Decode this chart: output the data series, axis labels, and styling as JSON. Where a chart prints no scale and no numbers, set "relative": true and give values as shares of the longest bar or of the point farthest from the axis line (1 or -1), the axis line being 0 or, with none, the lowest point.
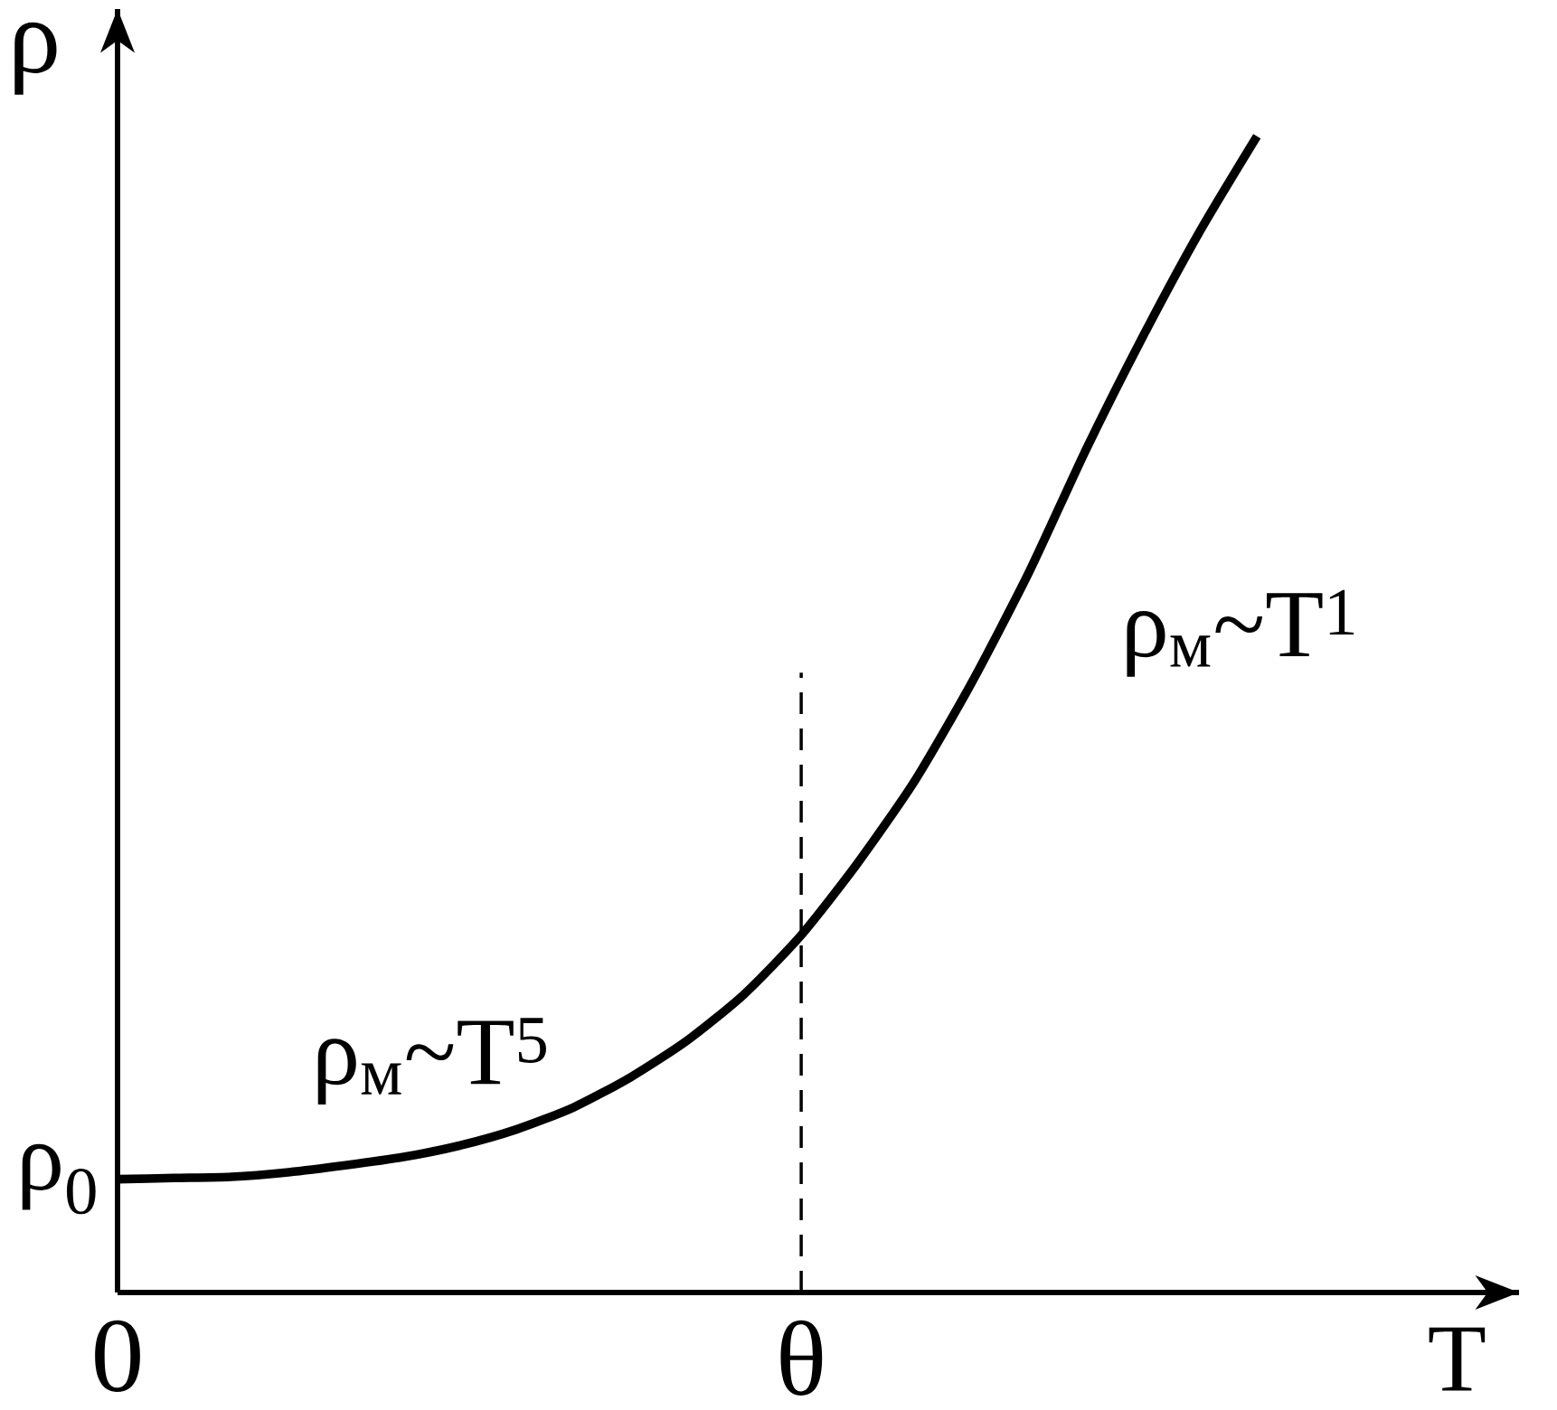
{
  "chart_data": {
    "type": "line",
    "relative": true,
    "xlabel": "T",
    "ylabel": "ρ",
    "categories": [
      "0",
      null,
      null,
      null,
      null,
      null,
      null,
      null,
      null,
      null,
      null,
      null,
      "θ",
      null,
      null,
      null,
      null,
      null,
      null,
      null,
      null
    ],
    "series": [
      {
        "color": "#000000",
        "values": [
          0.098,
          0.099,
          0.1,
          0.104,
          0.11,
          0.117,
          0.127,
          0.141,
          0.16,
          0.186,
          0.218,
          0.258,
          0.309,
          0.372,
          0.443,
          0.528,
          0.623,
          0.729,
          0.827,
          0.918,
          1.0
        ]
      }
    ],
    "ref_lines": [
      {
        "axis": "x",
        "value": "θ",
        "line_style": "dashed"
      }
    ],
    "annotations": [
      "ρ$_{0}$",
      "ρ$_{м}$~T$^{5}$",
      "ρ$_{м}$~T$^{1}$"
    ],
    "line_style": "solid",
    "marker": "none"
  }
}
